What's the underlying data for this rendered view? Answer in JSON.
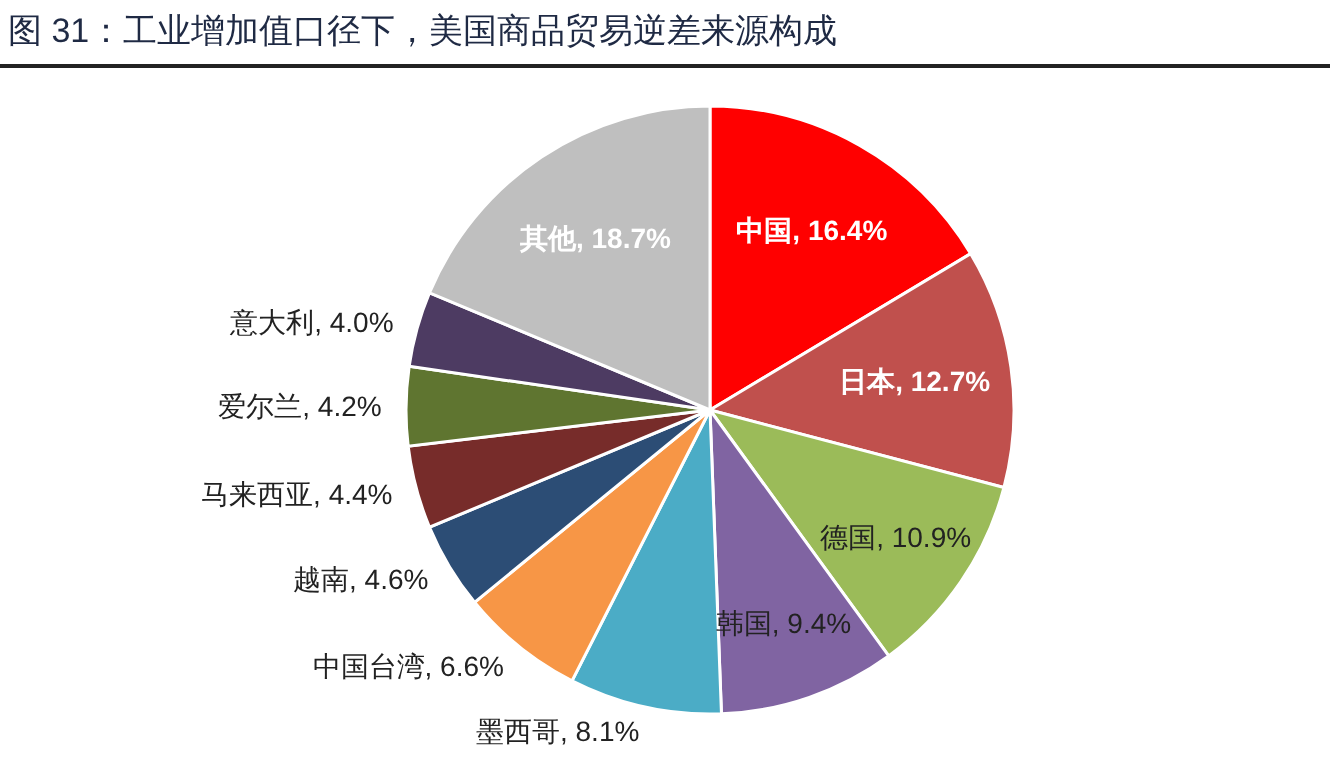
{
  "chart_data": {
    "type": "pie",
    "title": "图 31：工业增加值口径下，美国商品贸易逆差来源构成",
    "categories": [
      "中国",
      "日本",
      "德国",
      "韩国",
      "墨西哥",
      "中国台湾",
      "越南",
      "马来西亚",
      "爱尔兰",
      "意大利",
      "其他"
    ],
    "values": [
      16.4,
      12.7,
      10.9,
      9.4,
      8.1,
      6.6,
      4.6,
      4.4,
      4.2,
      4.0,
      18.7
    ],
    "colors": [
      "#ff0000",
      "#c0504d",
      "#9bbb59",
      "#8064a2",
      "#4bacc6",
      "#f79646",
      "#2c4d75",
      "#772c2a",
      "#5f7530",
      "#4d3b62",
      "#bfbfbf"
    ],
    "value_labels": [
      ", 16.4%",
      ", 12.7%",
      ", 10.9%",
      ", 9.4%",
      ", 8.1%",
      ", 6.6%",
      ", 4.6%",
      ", 4.4%",
      ", 4.2%",
      ", 4.0%",
      ", 18.7%"
    ],
    "legend": false
  }
}
